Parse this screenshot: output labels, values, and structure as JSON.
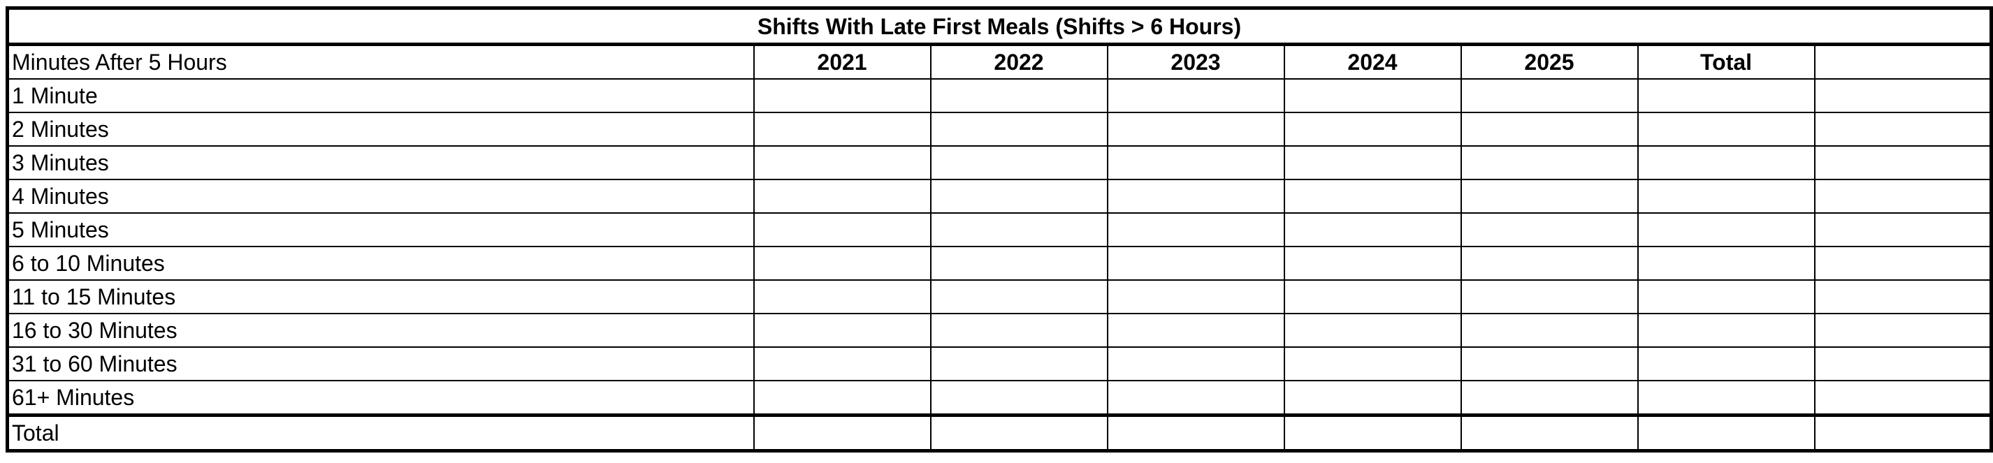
{
  "table": {
    "title": "Shifts With Late First Meals (Shifts > 6 Hours)",
    "row_header": "Minutes After 5 Hours",
    "columns": [
      "2021",
      "2022",
      "2023",
      "2024",
      "2025",
      "Total",
      ""
    ],
    "rows": [
      {
        "label": "1 Minute",
        "cells": [
          "",
          "",
          "",
          "",
          "",
          "",
          ""
        ]
      },
      {
        "label": "2 Minutes",
        "cells": [
          "",
          "",
          "",
          "",
          "",
          "",
          ""
        ]
      },
      {
        "label": "3 Minutes",
        "cells": [
          "",
          "",
          "",
          "",
          "",
          "",
          ""
        ]
      },
      {
        "label": "4 Minutes",
        "cells": [
          "",
          "",
          "",
          "",
          "",
          "",
          ""
        ]
      },
      {
        "label": "5 Minutes",
        "cells": [
          "",
          "",
          "",
          "",
          "",
          "",
          ""
        ]
      },
      {
        "label": "6 to 10 Minutes",
        "cells": [
          "",
          "",
          "",
          "",
          "",
          "",
          ""
        ]
      },
      {
        "label": "11 to 15 Minutes",
        "cells": [
          "",
          "",
          "",
          "",
          "",
          "",
          ""
        ]
      },
      {
        "label": "16 to 30 Minutes",
        "cells": [
          "",
          "",
          "",
          "",
          "",
          "",
          ""
        ]
      },
      {
        "label": "31 to 60 Minutes",
        "cells": [
          "",
          "",
          "",
          "",
          "",
          "",
          ""
        ]
      },
      {
        "label": "61+ Minutes",
        "cells": [
          "",
          "",
          "",
          "",
          "",
          "",
          ""
        ]
      }
    ],
    "total_row": {
      "label": "Total",
      "cells": [
        "",
        "",
        "",
        "",
        "",
        "",
        ""
      ]
    }
  }
}
